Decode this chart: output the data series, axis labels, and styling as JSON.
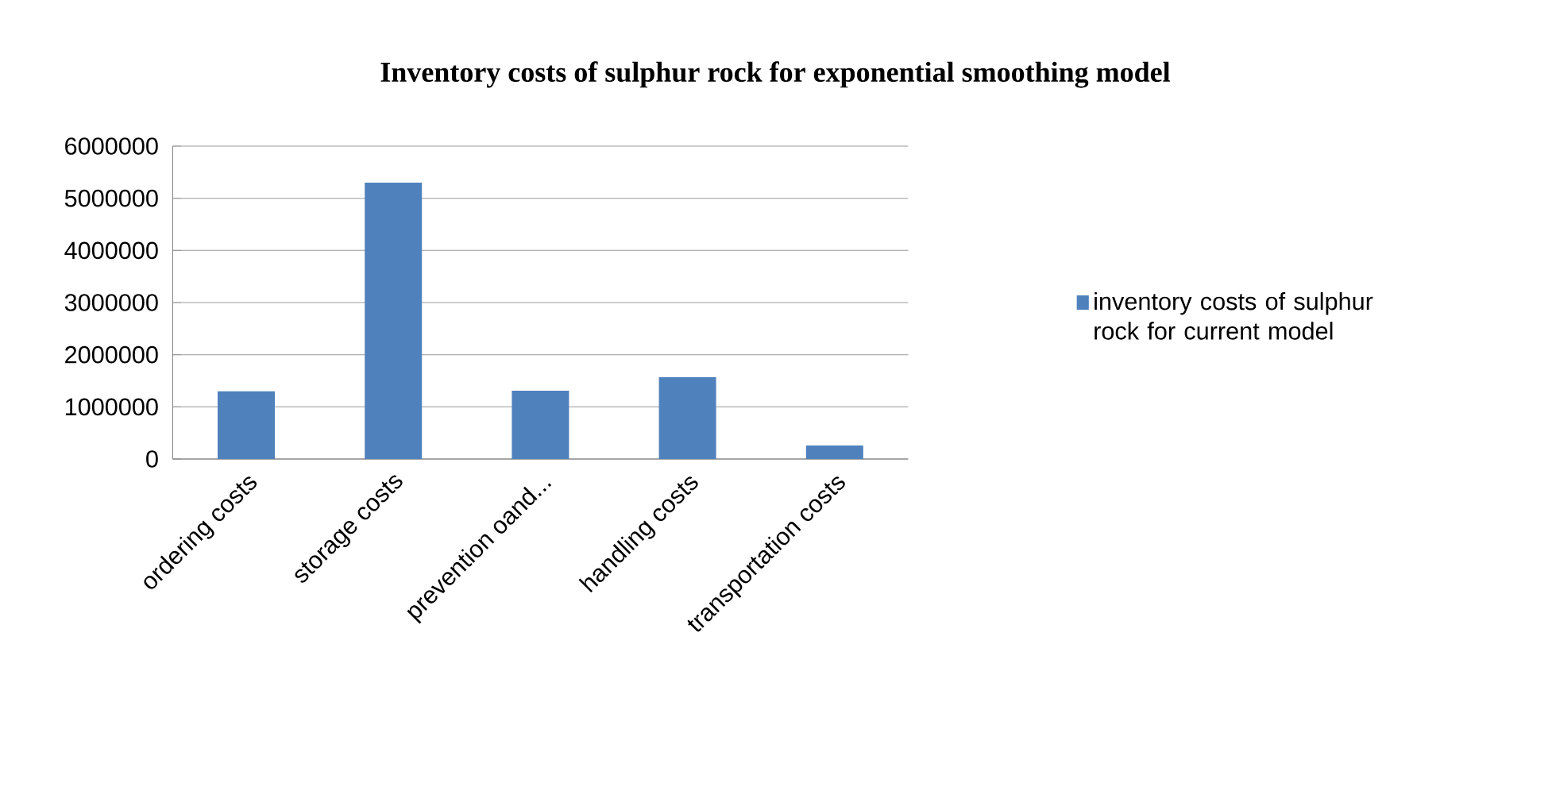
{
  "chart_data": {
    "type": "bar",
    "title": "Inventory costs of sulphur rock for exponential smoothing  model",
    "categories": [
      "ordering costs",
      "storage costs",
      "prevention oand...",
      "handling costs",
      "transportation costs"
    ],
    "series": [
      {
        "name": "inventory costs of sulphur rock for current model",
        "color": "#4f81bd",
        "values": [
          1300000,
          5300000,
          1310000,
          1570000,
          260000
        ]
      }
    ],
    "ylim": [
      0,
      6000000
    ],
    "yticks": [
      0,
      1000000,
      2000000,
      3000000,
      4000000,
      5000000,
      6000000
    ],
    "grid": "y",
    "legend": "right"
  }
}
